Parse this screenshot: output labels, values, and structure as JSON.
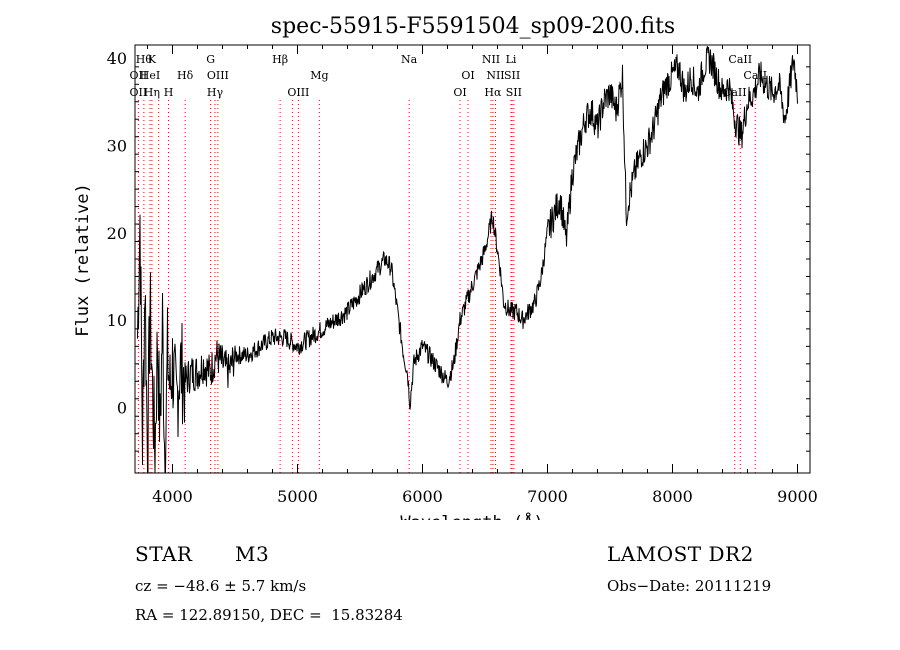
{
  "chart_data": {
    "type": "line",
    "title": "spec-55915-F5591504_sp09-200.fits",
    "xlabel": "Wavelength (Å)",
    "ylabel": "Flux (relative)",
    "xlim": [
      3700,
      9100
    ],
    "ylim": [
      -7.5,
      41.5
    ],
    "xticks": [
      4000,
      5000,
      6000,
      7000,
      8000,
      9000
    ],
    "yticks": [
      0,
      10,
      20,
      30,
      40
    ],
    "grid": false,
    "colors": {
      "spectrum": "#000000",
      "line_markers": "#ff0000"
    },
    "series": [
      {
        "x": [
          3720,
          3740,
          3760,
          3780,
          3800,
          3820,
          3840,
          3860,
          3880,
          3900,
          3920,
          3940,
          3960,
          3980,
          4000,
          4030,
          4060,
          4100,
          4150,
          4200,
          4250,
          4300,
          4350,
          4400,
          4450,
          4500,
          4600,
          4700,
          4800,
          4900,
          5000,
          5100,
          5200,
          5300,
          5400,
          5500,
          5600,
          5700,
          5750,
          5800,
          5850,
          5880,
          5900,
          5930,
          5960,
          6000,
          6050,
          6100,
          6150,
          6200,
          6250,
          6300,
          6350,
          6400,
          6450,
          6500,
          6530,
          6560,
          6580,
          6600,
          6620,
          6650,
          6700,
          6750,
          6800,
          6850,
          6900,
          6950,
          7000,
          7050,
          7100,
          7150,
          7200,
          7250,
          7300,
          7350,
          7400,
          7450,
          7500,
          7550,
          7600,
          7630,
          7650,
          7670,
          7700,
          7750,
          7800,
          7850,
          7900,
          7950,
          8000,
          8050,
          8100,
          8150,
          8200,
          8250,
          8300,
          8350,
          8400,
          8450,
          8500,
          8550,
          8600,
          8650,
          8700,
          8750,
          8800,
          8850,
          8900,
          8950,
          8970,
          9000
        ],
        "y": [
          8,
          22,
          -4,
          15,
          -6,
          12,
          2,
          -5,
          8,
          -3,
          10,
          -7,
          6,
          2,
          5,
          0,
          5,
          3,
          4,
          4,
          5,
          4,
          6,
          5,
          4,
          6,
          6,
          7,
          8,
          8,
          7,
          8,
          9,
          10,
          11,
          13,
          15,
          17,
          16,
          11,
          6,
          4,
          0.5,
          5,
          6,
          7,
          6,
          5,
          4,
          3,
          5,
          10,
          12,
          14,
          16,
          18,
          20,
          22,
          20,
          18,
          16,
          12,
          11,
          11,
          10,
          11,
          12,
          15,
          20,
          22,
          24,
          19,
          27,
          30,
          33,
          34,
          32,
          35,
          36,
          34,
          38,
          22,
          24,
          25,
          27,
          29,
          30,
          32,
          35,
          37,
          38,
          39,
          36,
          38,
          36,
          39,
          40,
          38,
          36,
          37,
          33,
          31,
          35,
          36,
          38,
          37,
          36,
          37,
          33,
          38,
          40,
          36
        ]
      }
    ],
    "line_markers": {
      "upper": [
        {
          "x": 3771,
          "label": "Hθ"
        },
        {
          "x": 3835,
          "label": "K"
        },
        {
          "x": 4305,
          "label": "G"
        },
        {
          "x": 4861,
          "label": "Hβ"
        },
        {
          "x": 5893,
          "label": "Na"
        },
        {
          "x": 6548,
          "label": "NII"
        },
        {
          "x": 6708,
          "label": "Li"
        },
        {
          "x": 8542,
          "label": "CaII"
        }
      ],
      "middle": [
        {
          "x": 3727,
          "label": "OII"
        },
        {
          "x": 3820,
          "label": "HeI"
        },
        {
          "x": 4101,
          "label": "Hδ"
        },
        {
          "x": 4363,
          "label": "OIII"
        },
        {
          "x": 5175,
          "label": "Mg"
        },
        {
          "x": 6364,
          "label": "OI"
        },
        {
          "x": 6584,
          "label": "NII"
        },
        {
          "x": 6717,
          "label": "SII"
        },
        {
          "x": 8662,
          "label": "CaII"
        }
      ],
      "lower": [
        {
          "x": 3727,
          "label": "OII"
        },
        {
          "x": 3835,
          "label": "Hη"
        },
        {
          "x": 3968,
          "label": "H"
        },
        {
          "x": 4340,
          "label": "Hγ"
        },
        {
          "x": 5007,
          "label": "OIII"
        },
        {
          "x": 6300,
          "label": "OI"
        },
        {
          "x": 6563,
          "label": "Hα"
        },
        {
          "x": 6731,
          "label": "SII"
        },
        {
          "x": 8498,
          "label": "CaII"
        }
      ],
      "dotted_only_x": [
        3889,
        4959,
        8498,
        8542
      ]
    }
  },
  "info": {
    "object_type": "STAR",
    "subclass": "M3",
    "survey": "LAMOST DR2",
    "cz": "cz = −48.6 ± 5.7 km/s",
    "obs_date": "Obs−Date: 20111219",
    "radec": "RA = 122.89150, DEC =  15.83284"
  }
}
